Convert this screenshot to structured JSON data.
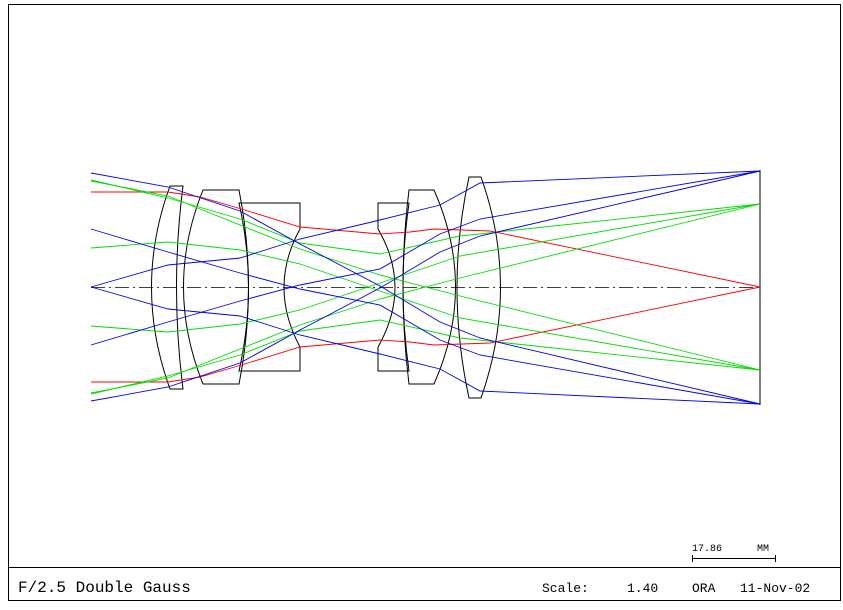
{
  "title_block": {
    "title": "F/2.5 Double Gauss",
    "scale_label": "Scale:",
    "scale_value": "1.40",
    "vendor": "ORA",
    "date": "11-Nov-02"
  },
  "scale_bar": {
    "value": "17.86",
    "unit": "MM"
  },
  "colors": {
    "frame": "#000000",
    "lens": "#000000",
    "axis": "#000000",
    "ray_on_axis": "#ff0000",
    "ray_mid_field": "#00dd00",
    "ray_full_field": "#0000ee"
  },
  "ray_bundles": [
    {
      "field": "on-axis",
      "color_key": "ray_on_axis"
    },
    {
      "field": "mid-field",
      "color_key": "ray_mid_field"
    },
    {
      "field": "full-field",
      "color_key": "ray_full_field"
    }
  ]
}
